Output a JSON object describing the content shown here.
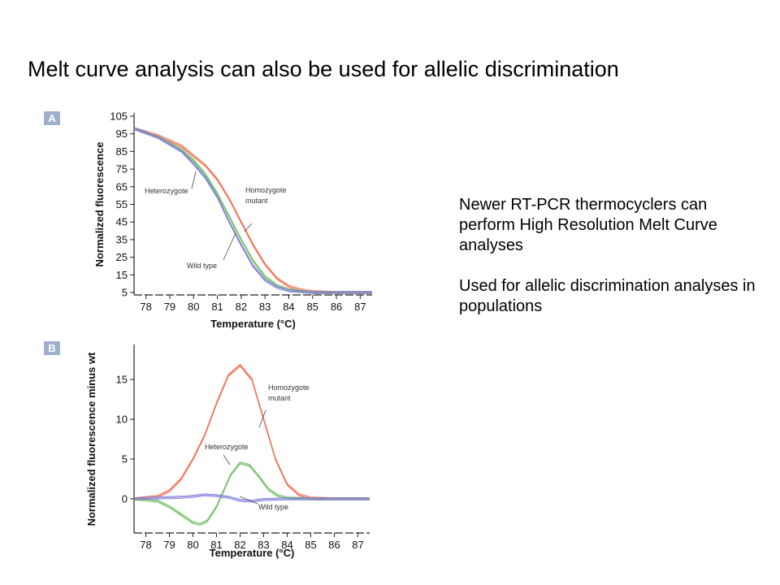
{
  "slide": {
    "title": "Melt curve analysis can also be used for allelic discrimination",
    "paragraphs": [
      "Newer RT-PCR thermocyclers can perform High Resolution Melt Curve analyses",
      "Used for allelic discrimination analyses in populations"
    ]
  },
  "colors": {
    "homozygote_mutant": "#f06b4d",
    "heterozygote": "#6cbf5b",
    "wild_type": "#7b78d9",
    "axis": "#222222",
    "badge": "#9fb1c8"
  },
  "chart_data": [
    {
      "type": "line",
      "panel_label": "A",
      "xlabel": "Temperature (°C)",
      "ylabel": "Normalized fluorescence",
      "xlim": [
        77.5,
        87.5
      ],
      "ylim": [
        5,
        105
      ],
      "x_ticks": [
        "78",
        "79",
        "80",
        "81",
        "82",
        "83",
        "84",
        "85",
        "86",
        "87"
      ],
      "y_ticks": [
        "105",
        "95",
        "85",
        "75",
        "65",
        "55",
        "45",
        "35",
        "25",
        "15",
        "5"
      ],
      "grid": false,
      "series": [
        {
          "name": "Homozygote mutant",
          "color": "#f06b4d",
          "x": [
            77.5,
            78.5,
            79.5,
            80.5,
            81.0,
            81.5,
            82.0,
            82.5,
            83.0,
            83.5,
            84.0,
            84.5,
            85.0,
            86.0,
            87.5
          ],
          "y": [
            98,
            94,
            88,
            77,
            69,
            58,
            45,
            32,
            21,
            13,
            8.5,
            6.5,
            5.5,
            5,
            5
          ]
        },
        {
          "name": "Heterozygote",
          "color": "#6cbf5b",
          "x": [
            77.5,
            78.5,
            79.5,
            80.0,
            80.5,
            81.0,
            81.5,
            82.0,
            82.5,
            83.0,
            83.5,
            84.0,
            85.0,
            87.5
          ],
          "y": [
            98,
            93,
            86,
            80,
            72,
            61,
            48,
            35,
            23,
            14,
            9,
            6.5,
            5,
            5
          ]
        },
        {
          "name": "Wild type",
          "color": "#7b78d9",
          "x": [
            77.5,
            78.5,
            79.5,
            80.0,
            80.5,
            81.0,
            81.5,
            82.0,
            82.5,
            83.0,
            83.5,
            84.0,
            85.0,
            87.5
          ],
          "y": [
            98,
            93,
            85,
            78,
            70,
            59,
            45,
            32,
            20,
            12,
            8,
            6,
            5,
            5
          ]
        }
      ],
      "annotations": [
        {
          "text": "Heterozygote",
          "series": "Heterozygote",
          "x": 80.0,
          "y": 80
        },
        {
          "text": "Homozygote",
          "series": "Homozygote mutant",
          "x": 81.9,
          "y": 48
        },
        {
          "text": "mutant",
          "series": "Homozygote mutant",
          "x": 81.9,
          "y": 48
        },
        {
          "text": "Wild type",
          "series": "Wild type",
          "x": 81.3,
          "y": 50
        }
      ]
    },
    {
      "type": "line",
      "panel_label": "B",
      "xlabel": "Temperature (°C)",
      "ylabel": "Normalized fluorescence minus wt",
      "xlim": [
        77.5,
        87.5
      ],
      "ylim": [
        -4,
        19
      ],
      "x_ticks": [
        "78",
        "79",
        "80",
        "81",
        "82",
        "83",
        "84",
        "85",
        "86",
        "87"
      ],
      "y_ticks": [
        "15",
        "10",
        "5",
        "0"
      ],
      "grid": false,
      "series": [
        {
          "name": "Homozygote mutant",
          "color": "#f06b4d",
          "x": [
            77.5,
            78.5,
            79.0,
            79.5,
            80.0,
            80.5,
            81.0,
            81.5,
            82.0,
            82.5,
            83.0,
            83.5,
            84.0,
            84.5,
            85.0,
            86.0,
            87.5
          ],
          "y": [
            0,
            0.3,
            1,
            2.5,
            5,
            8,
            12,
            15.5,
            16.8,
            15,
            10,
            5,
            1.8,
            0.5,
            0.1,
            0,
            0
          ]
        },
        {
          "name": "Heterozygote",
          "color": "#6cbf5b",
          "x": [
            77.5,
            78.5,
            79.0,
            79.5,
            80.0,
            80.3,
            80.6,
            81.0,
            81.3,
            81.6,
            82.0,
            82.4,
            82.8,
            83.2,
            83.6,
            84.0,
            85.0,
            87.5
          ],
          "y": [
            0,
            -0.3,
            -1,
            -2,
            -3,
            -3.2,
            -2.8,
            -1,
            1,
            3,
            4.5,
            4.2,
            2.8,
            1.2,
            0.4,
            0.1,
            0,
            0
          ]
        },
        {
          "name": "Wild type",
          "color": "#7b78d9",
          "x": [
            77.5,
            78.5,
            79.5,
            80.0,
            80.5,
            81.0,
            81.5,
            82.0,
            82.5,
            83.0,
            84.0,
            87.5
          ],
          "y": [
            0,
            0.1,
            0.2,
            0.3,
            0.5,
            0.4,
            0.2,
            -0.2,
            -0.3,
            -0.1,
            0,
            0
          ]
        }
      ],
      "annotations": [
        {
          "text": "Homozygote",
          "series": "Homozygote mutant",
          "x": 82.7,
          "y": 8.5
        },
        {
          "text": "mutant",
          "series": "Homozygote mutant",
          "x": 82.7,
          "y": 8.5
        },
        {
          "text": "Heterozygote",
          "series": "Heterozygote",
          "x": 81.7,
          "y": 3.5
        },
        {
          "text": "Wild type",
          "series": "Wild type",
          "x": 82.5,
          "y": -0.3
        }
      ]
    }
  ]
}
